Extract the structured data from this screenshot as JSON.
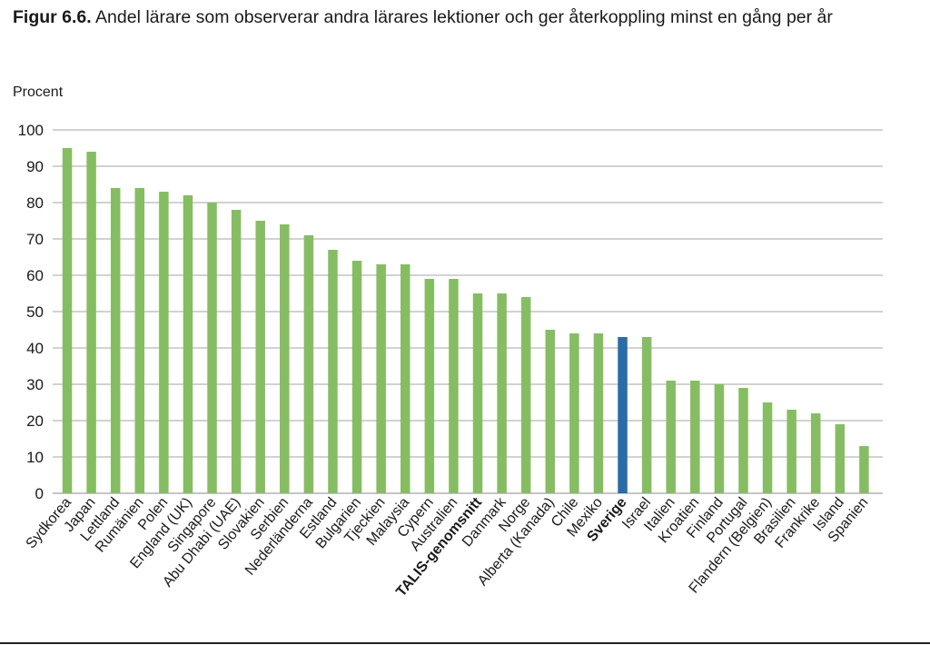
{
  "title": {
    "label": "Figur 6.6.",
    "text": "Andel lärare som observerar andra lärares lektioner och ger återkoppling minst en gång per år"
  },
  "chart_data": {
    "type": "bar",
    "ylabel": "Procent",
    "xlabel": "",
    "ylim": [
      0,
      100
    ],
    "yticks": [
      0,
      10,
      20,
      30,
      40,
      50,
      60,
      70,
      80,
      90,
      100
    ],
    "grid": true,
    "categories": [
      "Sydkorea",
      "Japan",
      "Lettland",
      "Rumänien",
      "Polen",
      "England (UK)",
      "Singapore",
      "Abu Dhabi (UAE)",
      "Slovakien",
      "Serbien",
      "Nederländerna",
      "Estland",
      "Bulgarien",
      "Tjeckien",
      "Malaysia",
      "Cypern",
      "Australien",
      "TALIS-genomsnitt",
      "Danmark",
      "Norge",
      "Alberta (Kanada)",
      "Chile",
      "Mexiko",
      "Sverige",
      "Israel",
      "Italien",
      "Kroatien",
      "Finland",
      "Portugal",
      "Flandern (Belgien)",
      "Brasilien",
      "Frankrike",
      "Island",
      "Spanien"
    ],
    "values": [
      95,
      94,
      84,
      84,
      83,
      82,
      80,
      78,
      75,
      74,
      71,
      67,
      64,
      63,
      63,
      59,
      59,
      55,
      55,
      54,
      45,
      44,
      44,
      43,
      43,
      31,
      31,
      30,
      29,
      25,
      23,
      22,
      19,
      13
    ],
    "bold_categories": [
      "TALIS-genomsnitt",
      "Sverige"
    ],
    "highlight_category": "Sverige",
    "colors": {
      "bar": "#86bd63",
      "highlight": "#2a6ca8",
      "grid": "#a6a6a6",
      "axis": "#8c8c8c"
    }
  }
}
